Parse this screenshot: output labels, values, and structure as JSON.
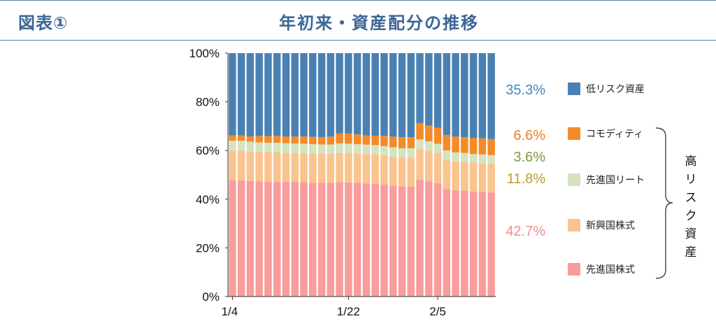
{
  "header": {
    "figure_label": "図表①",
    "title": "年初来・資産配分の推移"
  },
  "colors": {
    "low_risk": "#4a81b3",
    "commodity": "#f48b28",
    "dev_reit": "#d5e3be",
    "em_equity": "#fbc38e",
    "dev_equity": "#f99c9c"
  },
  "legend": [
    {
      "key": "low_risk",
      "label": "低リスク資産"
    },
    {
      "key": "commodity",
      "label": "コモディティ"
    },
    {
      "key": "dev_reit",
      "label": "先進国リート"
    },
    {
      "key": "em_equity",
      "label": "新興国株式"
    },
    {
      "key": "dev_equity",
      "label": "先進国株式"
    }
  ],
  "end_labels": {
    "low_risk": {
      "text": "35.3%",
      "color": "#3a8cc4"
    },
    "commodity": {
      "text": "6.6%",
      "color": "#f07d1a"
    },
    "dev_reit": {
      "text": "3.6%",
      "color": "#7c9a3c"
    },
    "em_equity": {
      "text": "11.8%",
      "color": "#c09a2a"
    },
    "dev_equity": {
      "text": "42.7%",
      "color": "#f28d8d"
    }
  },
  "high_risk_label": [
    "高",
    "リ",
    "ス",
    "ク",
    "資",
    "産"
  ],
  "chart_data": {
    "type": "bar",
    "stacked": true,
    "title": "年初来・資産配分の推移",
    "x_tick_labels": [
      {
        "index": 0,
        "label": "1/4"
      },
      {
        "index": 13,
        "label": "1/22"
      },
      {
        "index": 23,
        "label": "2/5"
      }
    ],
    "y_ticks": [
      "0%",
      "20%",
      "40%",
      "60%",
      "80%",
      "100%"
    ],
    "ylim": [
      0,
      100
    ],
    "series": [
      {
        "name": "先進国株式",
        "key": "dev_equity",
        "values": [
          47.8,
          47.8,
          47.5,
          47.3,
          47.2,
          47.2,
          47.1,
          47.0,
          47.0,
          46.8,
          46.7,
          46.7,
          47.0,
          46.9,
          46.7,
          46.5,
          46.3,
          46.0,
          45.6,
          45.2,
          45.2,
          48.0,
          47.3,
          46.6,
          44.2,
          43.6,
          43.4,
          43.2,
          43.0,
          42.7
        ]
      },
      {
        "name": "新興国株式",
        "key": "em_equity",
        "values": [
          12.2,
          12.2,
          12.1,
          12.0,
          12.0,
          12.0,
          11.9,
          11.9,
          11.9,
          11.9,
          11.9,
          11.9,
          12.0,
          12.0,
          12.0,
          12.0,
          12.0,
          11.9,
          11.9,
          11.9,
          11.9,
          12.6,
          12.6,
          12.3,
          12.0,
          11.9,
          11.9,
          11.8,
          11.8,
          11.8
        ]
      },
      {
        "name": "先進国リート",
        "key": "dev_reit",
        "values": [
          4.0,
          4.0,
          4.0,
          4.0,
          4.0,
          4.0,
          4.0,
          4.0,
          3.9,
          3.9,
          3.9,
          3.9,
          3.9,
          3.9,
          3.9,
          3.9,
          3.9,
          3.9,
          3.8,
          3.8,
          3.8,
          4.0,
          3.9,
          3.9,
          3.8,
          3.7,
          3.7,
          3.6,
          3.6,
          3.6
        ]
      },
      {
        "name": "コモディティ",
        "key": "commodity",
        "values": [
          2.2,
          2.2,
          2.2,
          2.7,
          2.7,
          2.8,
          2.8,
          2.8,
          3.0,
          3.0,
          3.0,
          3.2,
          4.2,
          4.2,
          4.0,
          3.8,
          3.9,
          4.2,
          4.4,
          4.6,
          4.6,
          6.7,
          6.4,
          6.6,
          6.4,
          6.5,
          6.5,
          6.5,
          6.6,
          6.6
        ]
      },
      {
        "name": "低リスク資産",
        "key": "low_risk",
        "values": [
          33.8,
          33.8,
          34.2,
          34.0,
          34.1,
          34.0,
          34.2,
          34.3,
          34.2,
          34.4,
          34.5,
          34.3,
          32.9,
          33.0,
          33.4,
          33.8,
          33.9,
          34.0,
          34.3,
          34.5,
          34.5,
          28.7,
          29.8,
          30.6,
          33.6,
          34.3,
          34.5,
          34.9,
          35.0,
          35.3
        ]
      }
    ]
  }
}
